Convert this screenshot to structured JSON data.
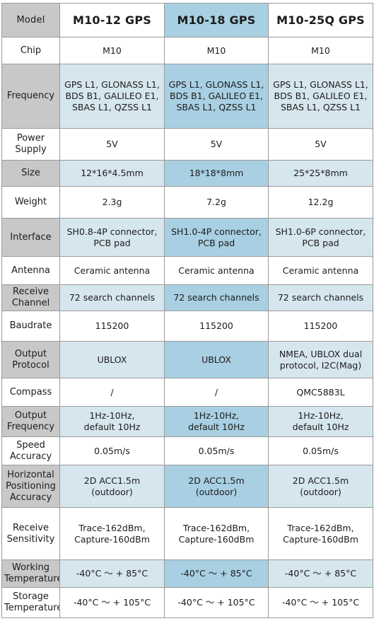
{
  "header": {
    "label": "Model",
    "models": [
      "M10-12 GPS",
      "M10-18 GPS",
      "M10-25Q GPS"
    ]
  },
  "rows": [
    {
      "label": [
        "Chip"
      ],
      "values": [
        [
          "M10"
        ],
        [
          "M10"
        ],
        [
          "M10"
        ]
      ]
    },
    {
      "label": [
        "Frequency"
      ],
      "values": [
        [
          "GPS L1, GLONASS L1,",
          "BDS B1, GALILEO E1,",
          "SBAS L1, QZSS L1"
        ],
        [
          "GPS L1, GLONASS L1,",
          "BDS B1, GALILEO E1,",
          "SBAS L1, QZSS L1"
        ],
        [
          "GPS L1, GLONASS L1,",
          "BDS B1, GALILEO E1,",
          "SBAS L1, QZSS L1"
        ]
      ]
    },
    {
      "label": [
        "Power",
        "Supply"
      ],
      "values": [
        [
          "5V"
        ],
        [
          "5V"
        ],
        [
          "5V"
        ]
      ]
    },
    {
      "label": [
        "Size"
      ],
      "values": [
        [
          "12*16*4.5mm"
        ],
        [
          "18*18*8mm"
        ],
        [
          "25*25*8mm"
        ]
      ]
    },
    {
      "label": [
        "Weight"
      ],
      "values": [
        [
          "2.3g"
        ],
        [
          "7.2g"
        ],
        [
          "12.2g"
        ]
      ]
    },
    {
      "label": [
        "Interface"
      ],
      "values": [
        [
          "SH0.8-4P connector,",
          "PCB pad"
        ],
        [
          "SH1.0-4P connector,",
          "PCB pad"
        ],
        [
          "SH1.0-6P connector,",
          "PCB pad"
        ]
      ]
    },
    {
      "label": [
        "Antenna"
      ],
      "values": [
        [
          "Ceramic antenna"
        ],
        [
          "Ceramic antenna"
        ],
        [
          "Ceramic antenna"
        ]
      ]
    },
    {
      "label": [
        "Receive",
        "Channel"
      ],
      "values": [
        [
          "72 search channels"
        ],
        [
          "72 search channels"
        ],
        [
          "72 search channels"
        ]
      ]
    },
    {
      "label": [
        "Baudrate"
      ],
      "values": [
        [
          "115200"
        ],
        [
          "115200"
        ],
        [
          "115200"
        ]
      ]
    },
    {
      "label": [
        "Output",
        "Protocol"
      ],
      "values": [
        [
          "UBLOX"
        ],
        [
          "UBLOX"
        ],
        [
          "NMEA, UBLOX dual",
          "protocol, I2C(Mag)"
        ]
      ]
    },
    {
      "label": [
        "Compass"
      ],
      "values": [
        [
          "/"
        ],
        [
          "/"
        ],
        [
          "QMC5883L"
        ]
      ]
    },
    {
      "label": [
        "Output",
        "Frequency"
      ],
      "values": [
        [
          "1Hz-10Hz,",
          "default 10Hz"
        ],
        [
          "1Hz-10Hz,",
          "default 10Hz"
        ],
        [
          "1Hz-10Hz,",
          "default 10Hz"
        ]
      ]
    },
    {
      "label": [
        "Speed",
        "Accuracy"
      ],
      "values": [
        [
          "0.05m/s"
        ],
        [
          "0.05m/s"
        ],
        [
          "0.05m/s"
        ]
      ]
    },
    {
      "label": [
        "Horizontal",
        "Positioning",
        "Accuracy"
      ],
      "values": [
        [
          "2D ACC1.5m",
          "(outdoor)"
        ],
        [
          "2D ACC1.5m",
          "(outdoor)"
        ],
        [
          "2D ACC1.5m",
          "(outdoor)"
        ]
      ]
    },
    {
      "label": [
        "Receive",
        "Sensitivity"
      ],
      "values": [
        [
          "Trace-162dBm,",
          "Capture-160dBm"
        ],
        [
          "Trace-162dBm,",
          "Capture-160dBm"
        ],
        [
          "Trace-162dBm,",
          "Capture-160dBm"
        ]
      ]
    },
    {
      "label": [
        "Working",
        "Temperature"
      ],
      "values": [
        [
          "-40°C ～ + 85°C"
        ],
        [
          "-40°C ～ + 85°C"
        ],
        [
          "-40°C ～ + 85°C"
        ]
      ]
    },
    {
      "label": [
        "Storage",
        "Temperature"
      ],
      "values": [
        [
          "-40°C ～ + 105°C"
        ],
        [
          "-40°C ～ + 105°C"
        ],
        [
          "-40°C ～ + 105°C"
        ]
      ]
    }
  ]
}
